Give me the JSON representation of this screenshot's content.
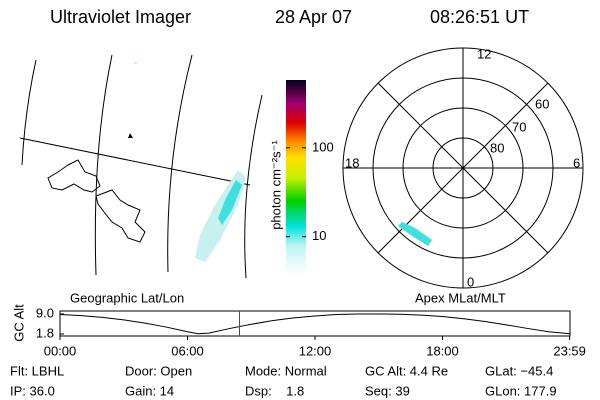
{
  "header": {
    "title": "Ultraviolet Imager",
    "date": "28 Apr 07",
    "time": "08:26:51 UT"
  },
  "colorbar": {
    "label": "photon cm⁻²s⁻¹",
    "clim": [
      3.7,
      580
    ],
    "ticks": [
      10,
      100
    ],
    "log": true
  },
  "polar": {
    "mlt_labels": [
      "12",
      "18",
      "6",
      "0"
    ],
    "lat_labels": [
      "60",
      "70",
      "80"
    ]
  },
  "chart_data": {
    "type": "line",
    "ylabel": "GC Alt",
    "left_title": "Geographic Lat/Lon",
    "right_title": "Apex MLat/MLT",
    "x": [
      0,
      1,
      2,
      3,
      4,
      5,
      6,
      6.5,
      7,
      8,
      9,
      10,
      11,
      12,
      13,
      14,
      15,
      16,
      17,
      18,
      19,
      20,
      21,
      22,
      23,
      24
    ],
    "series": [
      {
        "name": "GC Alt",
        "color": "#000000",
        "values": [
          8.8,
          8.4,
          7.8,
          6.9,
          5.7,
          4.3,
          2.6,
          1.9,
          2.1,
          3.8,
          5.3,
          6.6,
          7.6,
          8.3,
          8.8,
          9.0,
          9.0,
          8.9,
          8.6,
          8.1,
          7.3,
          6.3,
          5.1,
          3.8,
          2.6,
          1.9
        ]
      }
    ],
    "marker": {
      "x": 8.4475,
      "color": "#b22222"
    },
    "xlim": [
      0,
      24
    ],
    "ylim": [
      1.8,
      9.0
    ],
    "xticks": [
      {
        "value": 0,
        "label": "00:00"
      },
      {
        "value": 6,
        "label": "06:00"
      },
      {
        "value": 12,
        "label": "12:00"
      },
      {
        "value": 18,
        "label": "18:00"
      },
      {
        "value": 23.983,
        "label": "23:59"
      }
    ],
    "yticks": [
      {
        "value": 1.8,
        "label": "1.8"
      },
      {
        "value": 9.0,
        "label": "9.0"
      }
    ]
  },
  "footer": {
    "rows": [
      [
        "Flt: LBHL",
        "Door: Open",
        "Mode: Normal",
        "GC Alt: 4.4 Re",
        "GLat: −45.4"
      ],
      [
        "IP: 36.0",
        "Gain: 14",
        "Dsp:    1.8",
        "Seq: 39",
        "GLon: 177.9"
      ]
    ]
  }
}
